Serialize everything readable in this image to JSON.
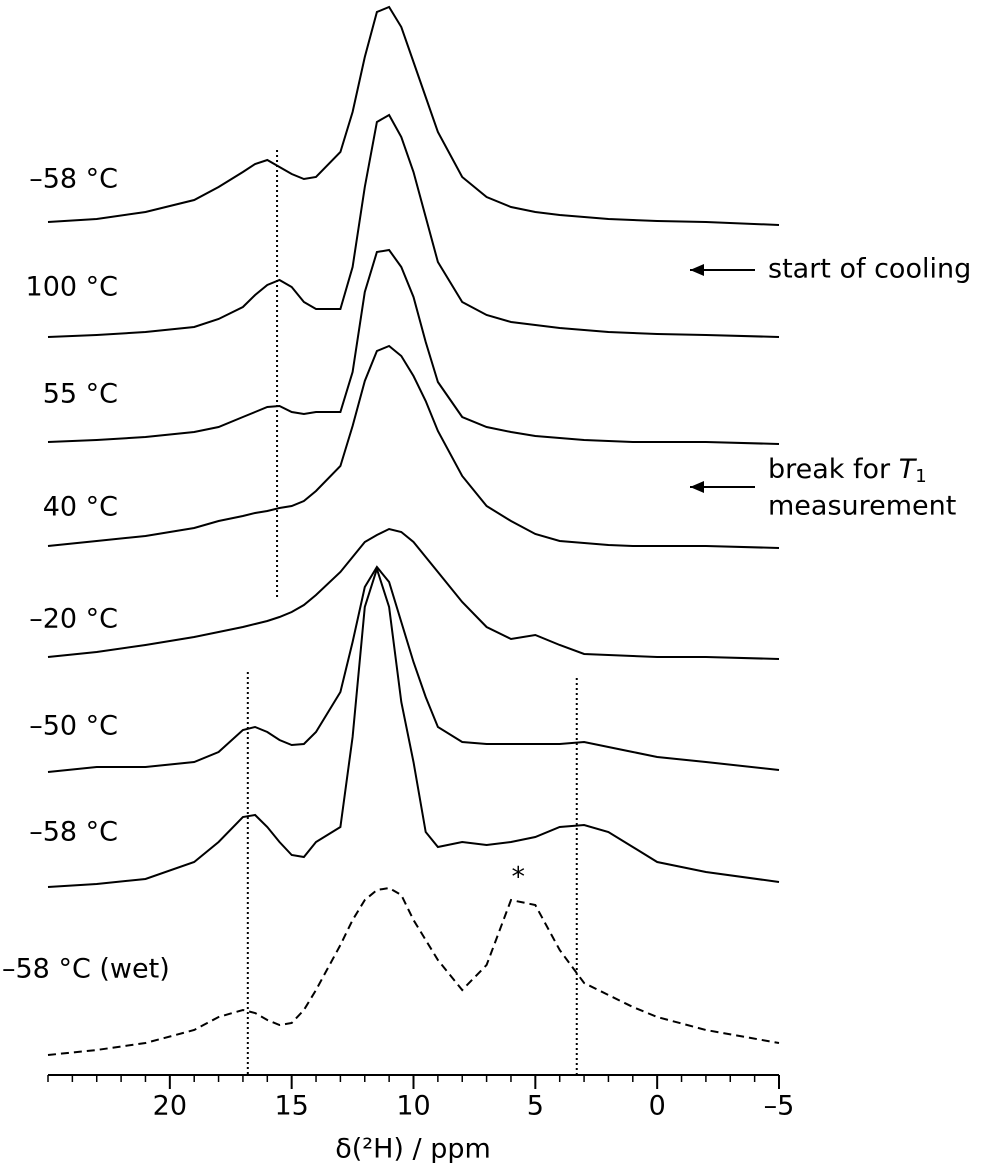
{
  "chart_data": {
    "type": "line",
    "x_label": "δ(²H) / ppm",
    "xlim": [
      25,
      -5
    ],
    "xticks": [
      20,
      15,
      10,
      5,
      0,
      {
        "value": -5,
        "label": "–5"
      }
    ],
    "xminorticks": [
      25,
      24,
      23,
      22,
      21,
      19,
      18,
      17,
      16,
      14,
      13,
      12,
      11,
      9,
      8,
      7,
      6,
      4,
      3,
      2,
      1,
      -1,
      -2,
      -3,
      -4
    ],
    "x": [
      25,
      23,
      21,
      19,
      18,
      17,
      16.5,
      16,
      15.5,
      15,
      14.5,
      14,
      13,
      12.5,
      12,
      11.5,
      11,
      10.5,
      10,
      9.5,
      9,
      8,
      7,
      6,
      5,
      4,
      3,
      2,
      1,
      0,
      -2,
      -5
    ],
    "series": [
      {
        "name": "–58 °C",
        "color": "#000",
        "values": [
          0,
          3,
          10,
          22,
          35,
          50,
          58,
          62,
          55,
          48,
          43,
          45,
          70,
          110,
          165,
          210,
          215,
          195,
          160,
          125,
          90,
          45,
          25,
          15,
          10,
          7,
          5,
          3,
          2,
          1,
          0,
          -3
        ]
      },
      {
        "name": "100 °C",
        "color": "#000",
        "values": [
          0,
          2,
          5,
          10,
          18,
          30,
          42,
          52,
          57,
          50,
          35,
          28,
          28,
          70,
          150,
          215,
          222,
          200,
          165,
          120,
          75,
          35,
          22,
          15,
          12,
          9,
          7,
          5,
          4,
          3,
          2,
          0
        ]
      },
      {
        "name": "55 °C",
        "color": "#000",
        "values": [
          0,
          2,
          5,
          10,
          15,
          25,
          30,
          35,
          36,
          30,
          28,
          30,
          30,
          70,
          150,
          190,
          192,
          175,
          145,
          100,
          60,
          25,
          15,
          10,
          6,
          4,
          2,
          1,
          0,
          0,
          0,
          -2
        ]
      },
      {
        "name": "40 °C",
        "color": "#000",
        "values": [
          0,
          5,
          10,
          18,
          25,
          30,
          33,
          35,
          38,
          40,
          45,
          55,
          80,
          120,
          165,
          195,
          200,
          190,
          170,
          145,
          115,
          70,
          40,
          25,
          12,
          5,
          3,
          1,
          0,
          0,
          0,
          -2
        ]
      },
      {
        "name": "–20 °C",
        "color": "#000",
        "values": [
          0,
          5,
          12,
          20,
          25,
          30,
          33,
          36,
          40,
          45,
          52,
          62,
          85,
          100,
          115,
          122,
          128,
          125,
          115,
          100,
          85,
          55,
          30,
          18,
          22,
          12,
          3,
          2,
          1,
          0,
          0,
          -2
        ]
      },
      {
        "name": "–50 °C",
        "color": "#000",
        "values": [
          0,
          5,
          5,
          10,
          20,
          42,
          45,
          40,
          32,
          27,
          28,
          40,
          80,
          130,
          185,
          205,
          190,
          150,
          110,
          75,
          45,
          30,
          28,
          28,
          28,
          28,
          30,
          25,
          20,
          15,
          10,
          2
        ]
      },
      {
        "name": "–58 °C",
        "color": "#000",
        "values": [
          0,
          3,
          8,
          25,
          45,
          70,
          72,
          60,
          45,
          32,
          30,
          45,
          60,
          150,
          280,
          318,
          280,
          185,
          125,
          55,
          40,
          45,
          42,
          45,
          50,
          60,
          62,
          55,
          40,
          25,
          15,
          5
        ]
      },
      {
        "name": "–58 °C (wet)",
        "color": "#000",
        "dashed": true,
        "values": [
          0,
          5,
          12,
          25,
          38,
          45,
          42,
          35,
          30,
          32,
          45,
          65,
          110,
          135,
          155,
          165,
          167,
          160,
          135,
          115,
          95,
          65,
          90,
          155,
          150,
          105,
          72,
          60,
          48,
          38,
          25,
          12
        ]
      }
    ],
    "vlines": [
      15.6,
      16.8,
      3.3
    ],
    "asterisk": {
      "text": "*",
      "x": 5.7
    },
    "annotations": [
      {
        "text": "start of cooling"
      },
      {
        "text": "break for ",
        "symbol": "T",
        "subscript": "1",
        "line2": "measurement"
      }
    ]
  }
}
